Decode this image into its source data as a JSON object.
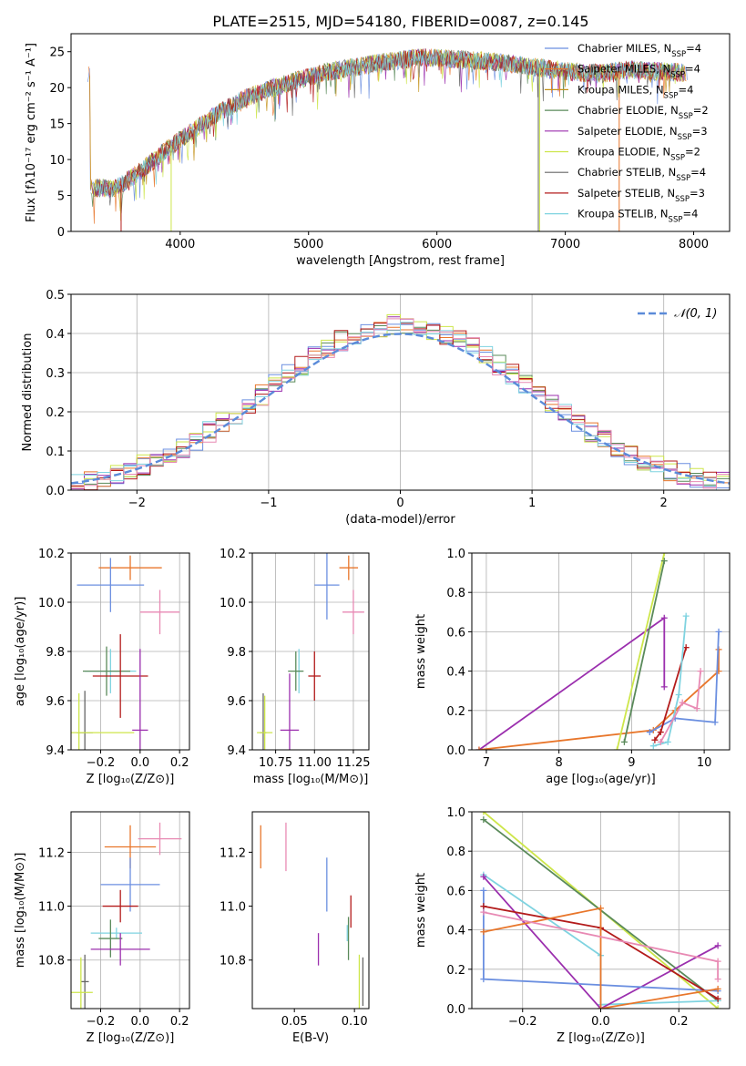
{
  "title": "PLATE=2515, MJD=54180, FIBERID=0087, z=0.145",
  "colors": {
    "Chabrier MILES": "#6b8fe0",
    "Salpeter MILES": "#e8762b",
    "Kroupa MILES": "#c4921c",
    "Chabrier ELODIE": "#5a8a5a",
    "Salpeter ELODIE": "#9b2fae",
    "Kroupa ELODIE": "#cde64a",
    "Chabrier STELIB": "#666666",
    "Salpeter STELIB": "#b31b1b",
    "Kroupa STELIB": "#7fd3e0",
    "pink": "#e88ab4",
    "gauss": "#5b8bd9"
  },
  "chart_data": [
    {
      "id": "spectrum",
      "type": "line",
      "xlabel": "wavelength [Angstrom, rest frame]",
      "ylabel": "Flux [fλ10⁻¹⁷ erg cm⁻² s⁻¹ A⁻¹]",
      "xlim": [
        3150,
        8280
      ],
      "ylim": [
        0,
        27.5
      ],
      "xticks": [
        4000,
        5000,
        6000,
        7000,
        8000
      ],
      "yticks": [
        0,
        5,
        10,
        15,
        20,
        25
      ],
      "grid": false,
      "legend_position": "top-right",
      "continuum": [
        [
          3300,
          6.1
        ],
        [
          3500,
          6.0
        ],
        [
          3700,
          8.5
        ],
        [
          3900,
          11.5
        ],
        [
          4100,
          14.0
        ],
        [
          4300,
          16.5
        ],
        [
          4500,
          18.5
        ],
        [
          4700,
          19.8
        ],
        [
          4900,
          21.0
        ],
        [
          5100,
          22.0
        ],
        [
          5300,
          22.7
        ],
        [
          5500,
          23.3
        ],
        [
          5700,
          23.8
        ],
        [
          5900,
          24.2
        ],
        [
          6100,
          24.0
        ],
        [
          6300,
          23.8
        ],
        [
          6500,
          23.5
        ],
        [
          6700,
          23.0
        ],
        [
          6900,
          22.5
        ],
        [
          7100,
          22.1
        ],
        [
          7300,
          22.0
        ],
        [
          7500,
          22.5
        ],
        [
          7700,
          22.3
        ],
        [
          7900,
          22.1
        ]
      ],
      "series": [
        {
          "name": "Chabrier MILES, N_SSP=4",
          "key": "Chabrier MILES"
        },
        {
          "name": "Salpeter MILES, N_SSP=4",
          "key": "Salpeter MILES"
        },
        {
          "name": "Kroupa MILES, N_SSP=4",
          "key": "Kroupa MILES"
        },
        {
          "name": "Chabrier ELODIE, N_SSP=2",
          "key": "Chabrier ELODIE"
        },
        {
          "name": "Salpeter ELODIE, N_SSP=3",
          "key": "Salpeter ELODIE"
        },
        {
          "name": "Kroupa ELODIE, N_SSP=2",
          "key": "Kroupa ELODIE"
        },
        {
          "name": "Chabrier STELIB, N_SSP=4",
          "key": "Chabrier STELIB"
        },
        {
          "name": "Salpeter STELIB, N_SSP=3",
          "key": "Salpeter STELIB"
        },
        {
          "name": "Kroupa STELIB, N_SSP=4",
          "key": "Kroupa STELIB"
        }
      ]
    },
    {
      "id": "residuals",
      "type": "histogram",
      "xlabel": "(data-model)/error",
      "ylabel": "Normed distribution",
      "xlim": [
        -2.5,
        2.5
      ],
      "ylim": [
        0,
        0.5
      ],
      "xticks": [
        -2,
        -1,
        0,
        1,
        2
      ],
      "yticks": [
        0.0,
        0.1,
        0.2,
        0.3,
        0.4,
        0.5
      ],
      "grid": true,
      "legend_position": "top-right",
      "legend": "𝒩(0, 1)",
      "bin_width": 0.1,
      "series_keys": [
        "Chabrier MILES",
        "Salpeter MILES",
        "Chabrier ELODIE",
        "Salpeter ELODIE",
        "Kroupa ELODIE",
        "Salpeter STELIB",
        "Kroupa STELIB",
        "pink"
      ]
    },
    {
      "id": "age_vs_Z",
      "type": "errorbar",
      "xlabel": "Z [log₁₀(Z/Z⊙)]",
      "ylabel": "age  [log₁₀(age/yr)]",
      "xlim": [
        -0.35,
        0.25
      ],
      "ylim": [
        9.4,
        10.2
      ],
      "xticks": [
        -0.2,
        0.0,
        0.2
      ],
      "yticks": [
        9.4,
        9.6,
        9.8,
        10.0,
        10.2
      ],
      "grid": true,
      "points": [
        {
          "key": "Salpeter MILES",
          "x": -0.05,
          "y": 10.14,
          "xerr": 0.16,
          "yerr": 0.05
        },
        {
          "key": "Chabrier MILES",
          "x": -0.15,
          "y": 10.07,
          "xerr": 0.17,
          "yerr": 0.11
        },
        {
          "key": "pink",
          "x": 0.1,
          "y": 9.96,
          "xerr": 0.1,
          "yerr": 0.09
        },
        {
          "key": "Kroupa STELIB",
          "x": -0.15,
          "y": 9.72,
          "xerr": 0.13,
          "yerr": 0.09
        },
        {
          "key": "Chabrier ELODIE",
          "x": -0.17,
          "y": 9.72,
          "xerr": 0.12,
          "yerr": 0.1
        },
        {
          "key": "Salpeter STELIB",
          "x": -0.1,
          "y": 9.7,
          "xerr": 0.14,
          "yerr": 0.17
        },
        {
          "key": "Salpeter ELODIE",
          "x": 0.0,
          "y": 9.48,
          "xerr": 0.04,
          "yerr": 0.33
        },
        {
          "key": "Chabrier STELIB",
          "x": -0.28,
          "y": 9.47,
          "xerr": 0.04,
          "yerr": 0.17
        },
        {
          "key": "Kroupa ELODIE",
          "x": -0.31,
          "y": 9.47,
          "xerr": 0.28,
          "yerr": 0.16
        }
      ]
    },
    {
      "id": "age_vs_mass",
      "type": "errorbar",
      "xlabel": "mass [log₁₀(M/M⊙)]",
      "ylabel": "",
      "xlim": [
        10.6,
        11.35
      ],
      "ylim": [
        9.4,
        10.2
      ],
      "xticks": [
        10.75,
        11.0,
        11.25
      ],
      "yticks": [
        9.4,
        9.6,
        9.8,
        10.0,
        10.2
      ],
      "grid": true,
      "points": [
        {
          "key": "Salpeter MILES",
          "x": 11.22,
          "y": 10.14,
          "xerr": 0.06,
          "yerr": 0.05
        },
        {
          "key": "Chabrier MILES",
          "x": 11.08,
          "y": 10.07,
          "xerr": 0.08,
          "yerr": 0.14
        },
        {
          "key": "pink",
          "x": 11.25,
          "y": 9.96,
          "xerr": 0.07,
          "yerr": 0.09
        },
        {
          "key": "Kroupa STELIB",
          "x": 10.9,
          "y": 9.72,
          "xerr": 0.02,
          "yerr": 0.09
        },
        {
          "key": "Chabrier ELODIE",
          "x": 10.88,
          "y": 9.72,
          "xerr": 0.05,
          "yerr": 0.08
        },
        {
          "key": "Salpeter STELIB",
          "x": 11.0,
          "y": 9.7,
          "xerr": 0.04,
          "yerr": 0.1
        },
        {
          "key": "Salpeter ELODIE",
          "x": 10.84,
          "y": 9.48,
          "xerr": 0.06,
          "yerr": 0.23
        },
        {
          "key": "Chabrier STELIB",
          "x": 10.67,
          "y": 9.47,
          "xerr": 0.02,
          "yerr": 0.16
        },
        {
          "key": "Kroupa ELODIE",
          "x": 10.68,
          "y": 9.47,
          "xerr": 0.05,
          "yerr": 0.15
        }
      ]
    },
    {
      "id": "weight_vs_age",
      "type": "line",
      "xlabel": "age  [log₁₀(age/yr)]",
      "ylabel": "mass weight",
      "xlim": [
        6.8,
        10.35
      ],
      "ylim": [
        0.0,
        1.0
      ],
      "xticks": [
        7,
        8,
        9,
        10
      ],
      "yticks": [
        0.0,
        0.2,
        0.4,
        0.6,
        0.8,
        1.0
      ],
      "grid": true,
      "series": [
        {
          "key": "Salpeter ELODIE",
          "pts": [
            [
              6.9,
              0.0
            ],
            [
              9.45,
              0.67
            ],
            [
              9.45,
              0.32
            ]
          ]
        },
        {
          "key": "Salpeter MILES",
          "pts": [
            [
              6.9,
              0.0
            ],
            [
              9.3,
              0.1
            ],
            [
              9.6,
              0.2
            ],
            [
              10.2,
              0.4
            ],
            [
              10.2,
              0.51
            ]
          ]
        },
        {
          "key": "Chabrier MILES",
          "pts": [
            [
              9.25,
              0.09
            ],
            [
              9.6,
              0.16
            ],
            [
              10.15,
              0.14
            ],
            [
              10.2,
              0.6
            ]
          ]
        },
        {
          "key": "Kroupa ELODIE",
          "pts": [
            [
              8.8,
              0.0
            ],
            [
              9.45,
              1.0
            ]
          ]
        },
        {
          "key": "Chabrier ELODIE",
          "pts": [
            [
              8.9,
              0.04
            ],
            [
              9.45,
              0.96
            ]
          ]
        },
        {
          "key": "Salpeter STELIB",
          "pts": [
            [
              9.32,
              0.05
            ],
            [
              9.4,
              0.09
            ],
            [
              9.75,
              0.52
            ]
          ]
        },
        {
          "key": "Kroupa STELIB",
          "pts": [
            [
              9.3,
              0.02
            ],
            [
              9.5,
              0.04
            ],
            [
              9.65,
              0.28
            ],
            [
              9.75,
              0.68
            ]
          ]
        },
        {
          "key": "pink",
          "pts": [
            [
              9.4,
              0.04
            ],
            [
              9.7,
              0.24
            ],
            [
              9.9,
              0.21
            ],
            [
              9.95,
              0.4
            ]
          ]
        }
      ]
    },
    {
      "id": "mass_vs_Z",
      "type": "errorbar",
      "xlabel": "Z [log₁₀(Z/Z⊙)]",
      "ylabel": "mass [log₁₀(M/M⊙)]",
      "xlim": [
        -0.35,
        0.25
      ],
      "ylim": [
        10.62,
        11.35
      ],
      "xticks": [
        -0.2,
        0.0,
        0.2
      ],
      "yticks": [
        10.8,
        11.0,
        11.2
      ],
      "grid": true,
      "points": [
        {
          "key": "pink",
          "x": 0.1,
          "y": 11.25,
          "xerr": 0.11,
          "yerr": 0.06
        },
        {
          "key": "Salpeter MILES",
          "x": -0.05,
          "y": 11.22,
          "xerr": 0.13,
          "yerr": 0.08
        },
        {
          "key": "Chabrier MILES",
          "x": -0.05,
          "y": 11.08,
          "xerr": 0.15,
          "yerr": 0.1
        },
        {
          "key": "Salpeter STELIB",
          "x": -0.1,
          "y": 11.0,
          "xerr": 0.09,
          "yerr": 0.06
        },
        {
          "key": "Kroupa STELIB",
          "x": -0.12,
          "y": 10.9,
          "xerr": 0.13,
          "yerr": 0.02
        },
        {
          "key": "Chabrier ELODIE",
          "x": -0.15,
          "y": 10.88,
          "xerr": 0.06,
          "yerr": 0.07
        },
        {
          "key": "Salpeter ELODIE",
          "x": -0.1,
          "y": 10.84,
          "xerr": 0.15,
          "yerr": 0.06
        },
        {
          "key": "Chabrier STELIB",
          "x": -0.28,
          "y": 10.72,
          "xerr": 0.02,
          "yerr": 0.1
        },
        {
          "key": "Kroupa ELODIE",
          "x": -0.3,
          "y": 10.68,
          "xerr": 0.06,
          "yerr": 0.13
        }
      ]
    },
    {
      "id": "mass_vs_ebv",
      "type": "errorbar",
      "xlabel": "E(B-V)",
      "ylabel": "",
      "xlim": [
        0.015,
        0.112
      ],
      "ylim": [
        10.62,
        11.35
      ],
      "xticks": [
        0.05,
        0.1
      ],
      "yticks": [
        10.8,
        11.0,
        11.2
      ],
      "grid": false,
      "points": [
        {
          "key": "Salpeter MILES",
          "x": 0.022,
          "y": 11.22,
          "xerr": 0.0,
          "yerr": 0.08
        },
        {
          "key": "pink",
          "x": 0.043,
          "y": 11.22,
          "xerr": 0.0,
          "yerr": 0.09
        },
        {
          "key": "Chabrier MILES",
          "x": 0.077,
          "y": 11.08,
          "xerr": 0.0,
          "yerr": 0.1
        },
        {
          "key": "Salpeter STELIB",
          "x": 0.097,
          "y": 10.98,
          "xerr": 0.0,
          "yerr": 0.06
        },
        {
          "key": "Kroupa STELIB",
          "x": 0.094,
          "y": 10.9,
          "xerr": 0.0,
          "yerr": 0.03
        },
        {
          "key": "Chabrier ELODIE",
          "x": 0.095,
          "y": 10.88,
          "xerr": 0.0,
          "yerr": 0.08
        },
        {
          "key": "Salpeter ELODIE",
          "x": 0.07,
          "y": 10.84,
          "xerr": 0.0,
          "yerr": 0.06
        },
        {
          "key": "Chabrier STELIB",
          "x": 0.107,
          "y": 10.72,
          "xerr": 0.0,
          "yerr": 0.09
        },
        {
          "key": "Kroupa ELODIE",
          "x": 0.104,
          "y": 10.72,
          "xerr": 0.0,
          "yerr": 0.1
        }
      ]
    },
    {
      "id": "weight_vs_Z",
      "type": "line",
      "xlabel": "Z [log₁₀(Z/Z⊙)]",
      "ylabel": "mass weight",
      "xlim": [
        -0.33,
        0.33
      ],
      "ylim": [
        0.0,
        1.0
      ],
      "xticks": [
        -0.2,
        0.0,
        0.2
      ],
      "yticks": [
        0.0,
        0.2,
        0.4,
        0.6,
        0.8,
        1.0
      ],
      "grid": true,
      "series": [
        {
          "key": "Kroupa ELODIE",
          "pts": [
            [
              -0.3,
              1.0
            ],
            [
              0.3,
              0.0
            ]
          ]
        },
        {
          "key": "Chabrier ELODIE",
          "pts": [
            [
              -0.3,
              0.96
            ],
            [
              0.3,
              0.04
            ]
          ]
        },
        {
          "key": "Kroupa STELIB",
          "pts": [
            [
              -0.3,
              0.68
            ],
            [
              0.0,
              0.27
            ],
            [
              0.0,
              0.02
            ],
            [
              0.3,
              0.04
            ]
          ]
        },
        {
          "key": "Salpeter ELODIE",
          "pts": [
            [
              -0.3,
              0.67
            ],
            [
              0.0,
              0.0
            ],
            [
              0.3,
              0.32
            ]
          ]
        },
        {
          "key": "Chabrier MILES",
          "pts": [
            [
              -0.3,
              0.6
            ],
            [
              -0.3,
              0.15
            ],
            [
              0.3,
              0.09
            ]
          ]
        },
        {
          "key": "Salpeter STELIB",
          "pts": [
            [
              -0.3,
              0.52
            ],
            [
              0.0,
              0.41
            ],
            [
              0.3,
              0.05
            ]
          ]
        },
        {
          "key": "Salpeter MILES",
          "pts": [
            [
              -0.3,
              0.39
            ],
            [
              0.0,
              0.51
            ],
            [
              0.0,
              0.0
            ],
            [
              0.3,
              0.1
            ]
          ]
        },
        {
          "key": "pink",
          "pts": [
            [
              -0.3,
              0.49
            ],
            [
              0.3,
              0.24
            ],
            [
              0.3,
              0.15
            ]
          ]
        }
      ]
    }
  ]
}
